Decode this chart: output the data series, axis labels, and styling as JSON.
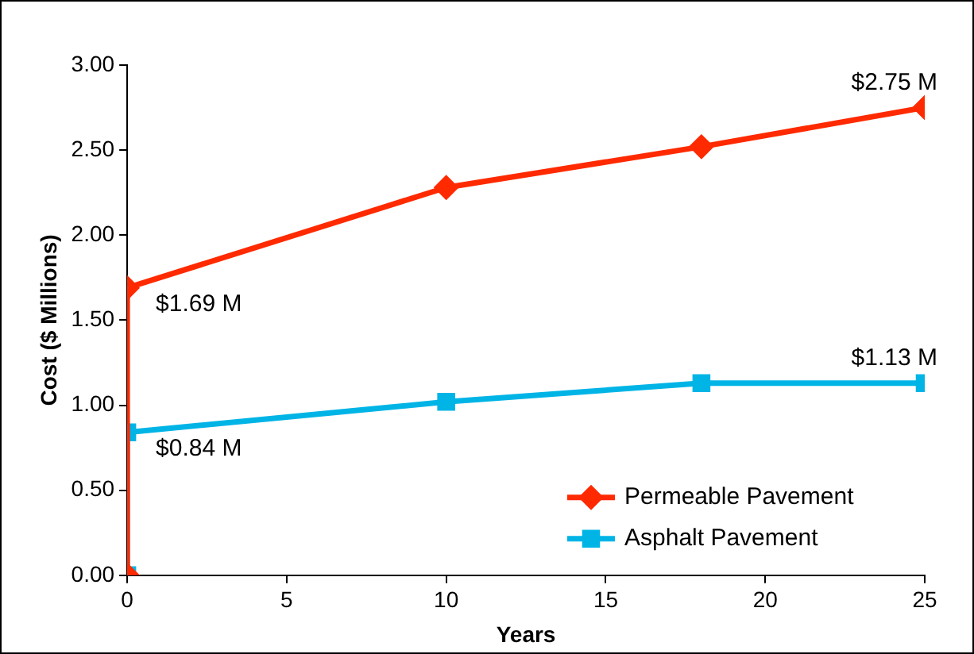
{
  "chart_data": {
    "type": "line",
    "xlabel": "Years",
    "ylabel": "Cost ($ Millions)",
    "series": [
      {
        "name": "Permeable Pavement",
        "color": "#ff2a00",
        "marker": "diamond",
        "x": [
          0,
          0,
          10,
          18,
          25
        ],
        "values": [
          0,
          1.69,
          2.28,
          2.52,
          2.75
        ],
        "value_labels": [
          null,
          "$1.69 M",
          null,
          null,
          "$2.75 M"
        ]
      },
      {
        "name": "Asphalt Pavement",
        "color": "#00b4e6",
        "marker": "square",
        "x": [
          0,
          0,
          10,
          18,
          25
        ],
        "values": [
          0,
          0.84,
          1.02,
          1.13,
          1.13
        ],
        "value_labels": [
          null,
          "$0.84 M",
          null,
          null,
          "$1.13 M"
        ]
      }
    ],
    "xlim": [
      0,
      25
    ],
    "xticks": [
      0,
      5,
      10,
      15,
      20,
      25
    ],
    "ylim": [
      0,
      3
    ],
    "yticks": [
      {
        "value": 0,
        "label": "0.00"
      },
      {
        "value": 0.5,
        "label": "0.50"
      },
      {
        "value": 1,
        "label": "1.00"
      },
      {
        "value": 1.5,
        "label": "1.50"
      },
      {
        "value": 2,
        "label": "2.00"
      },
      {
        "value": 2.5,
        "label": "2.50"
      },
      {
        "value": 3,
        "label": "3.00"
      }
    ],
    "grid": false,
    "legend": "bottom right",
    "line_style": "solid"
  }
}
